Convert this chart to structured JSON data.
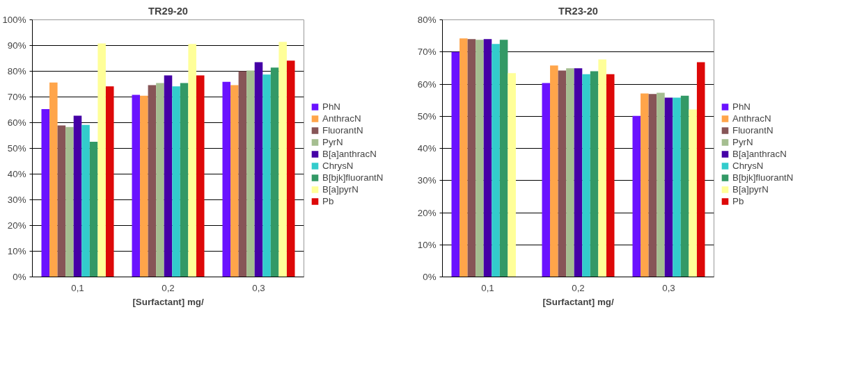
{
  "chart_data": [
    {
      "type": "bar",
      "title": "TR29-20",
      "xlabel": "[Surfactant] mg/",
      "categories": [
        "0,1",
        "0,2",
        "0,3"
      ],
      "ylim": [
        0,
        100
      ],
      "yticks": [
        {
          "value": 0,
          "label": "0%"
        },
        {
          "value": 10,
          "label": "10%"
        },
        {
          "value": 20,
          "label": "20%"
        },
        {
          "value": 30,
          "label": "30%"
        },
        {
          "value": 40,
          "label": "40%"
        },
        {
          "value": 50,
          "label": "50%"
        },
        {
          "value": 60,
          "label": "60%"
        },
        {
          "value": 70,
          "label": "70%"
        },
        {
          "value": 80,
          "label": "80%"
        },
        {
          "value": 90,
          "label": "90%"
        },
        {
          "value": 100,
          "label": "100%"
        }
      ],
      "grid": "y",
      "legend": "right",
      "series": [
        {
          "name": "PhN",
          "color": "#6a12ff",
          "values": [
            65.3,
            70.8,
            75.9
          ]
        },
        {
          "name": "AnthracN",
          "color": "#ffa54a",
          "values": [
            75.6,
            70.5,
            74.6
          ]
        },
        {
          "name": "FluorantN",
          "color": "#875557",
          "values": [
            58.9,
            74.6,
            80.0
          ]
        },
        {
          "name": "PyrN",
          "color": "#a5be90",
          "values": [
            58.3,
            75.4,
            80.3
          ]
        },
        {
          "name": "B[a]anthracN",
          "color": "#4500a6",
          "values": [
            62.7,
            78.4,
            83.5
          ]
        },
        {
          "name": "ChrysN",
          "color": "#33cccc",
          "values": [
            59.1,
            74.1,
            78.7
          ]
        },
        {
          "name": "B[bjk]fluorantN",
          "color": "#339966",
          "values": [
            52.6,
            75.4,
            81.4
          ]
        },
        {
          "name": "B[a]pyrN",
          "color": "#ffff99",
          "values": [
            90.8,
            90.6,
            91.4
          ]
        },
        {
          "name": "Pb",
          "color": "#dd0808",
          "values": [
            74.1,
            78.4,
            84.1
          ]
        }
      ]
    },
    {
      "type": "bar",
      "title": "TR23-20",
      "xlabel": "[Surfactant] mg/",
      "categories": [
        "0,1",
        "0,2",
        "0,3"
      ],
      "ylim": [
        0,
        80
      ],
      "yticks": [
        {
          "value": 0,
          "label": "0%"
        },
        {
          "value": 10,
          "label": "10%"
        },
        {
          "value": 20,
          "label": "20%"
        },
        {
          "value": 30,
          "label": "30%"
        },
        {
          "value": 40,
          "label": "40%"
        },
        {
          "value": 50,
          "label": "50%"
        },
        {
          "value": 60,
          "label": "60%"
        },
        {
          "value": 70,
          "label": "70%"
        },
        {
          "value": 80,
          "label": "80%"
        }
      ],
      "grid": "y",
      "legend": "right",
      "series": [
        {
          "name": "PhN",
          "color": "#6a12ff",
          "values": [
            70.0,
            60.3,
            50.1
          ]
        },
        {
          "name": "AnthracN",
          "color": "#ffa54a",
          "values": [
            74.2,
            65.8,
            57.1
          ]
        },
        {
          "name": "FluorantN",
          "color": "#875557",
          "values": [
            74.0,
            64.2,
            56.9
          ]
        },
        {
          "name": "PyrN",
          "color": "#a5be90",
          "values": [
            73.8,
            64.9,
            57.3
          ]
        },
        {
          "name": "B[a]anthracN",
          "color": "#4500a6",
          "values": [
            74.0,
            64.9,
            55.8
          ]
        },
        {
          "name": "ChrysN",
          "color": "#33cccc",
          "values": [
            72.5,
            63.1,
            55.8
          ]
        },
        {
          "name": "B[bjk]fluorantN",
          "color": "#339966",
          "values": [
            73.8,
            64.0,
            56.4
          ]
        },
        {
          "name": "B[a]pyrN",
          "color": "#ffff99",
          "values": [
            63.4,
            67.7,
            52.1
          ]
        },
        {
          "name": "Pb",
          "color": "#dd0808",
          "values": [
            null,
            63.1,
            66.8
          ]
        }
      ]
    }
  ]
}
